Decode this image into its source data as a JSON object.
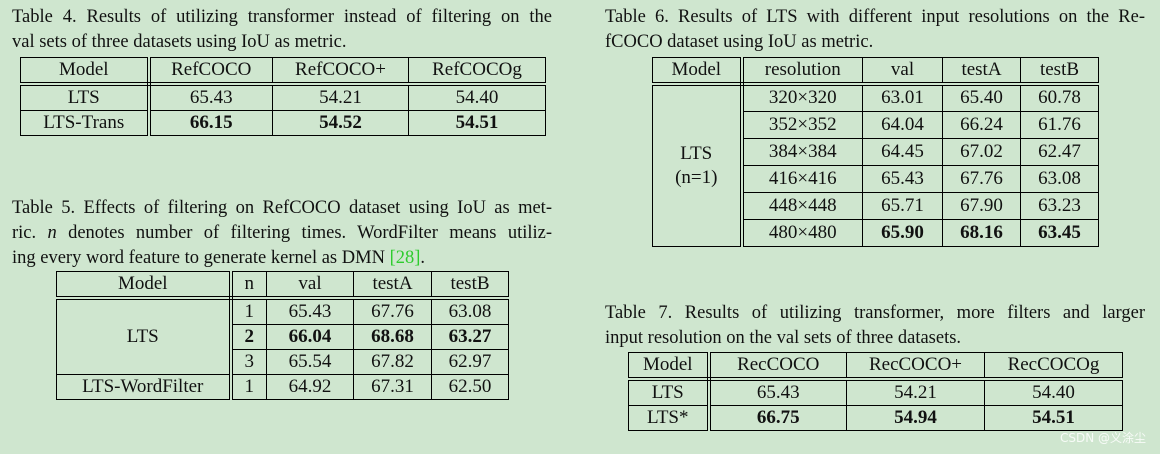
{
  "table4": {
    "caption": [
      "Table 4. Results of utilizing transformer instead of filtering on the",
      "val sets of three datasets using IoU as metric."
    ],
    "header": [
      "Model",
      "RefCOCO",
      "RefCOCO+",
      "RefCOCOg"
    ],
    "rows": [
      [
        "LTS",
        "65.43",
        "54.21",
        "54.40"
      ],
      [
        "LTS-Trans",
        "66.15",
        "54.52",
        "54.51"
      ]
    ]
  },
  "table5": {
    "caption": {
      "line1": "Table 5. Effects of filtering on RefCOCO dataset using IoU as met-",
      "line2": [
        "ric. ",
        "n",
        " denotes number of filtering times. WordFilter means utiliz-"
      ],
      "line3": [
        "ing every word feature to generate kernel as DMN ",
        "[28]",
        "."
      ]
    },
    "header": [
      "Model",
      "n",
      "val",
      "testA",
      "testB"
    ],
    "groups": [
      {
        "model": "LTS",
        "rows": [
          [
            "1",
            "65.43",
            "67.76",
            "63.08"
          ],
          [
            "2",
            "66.04",
            "68.68",
            "63.27"
          ],
          [
            "3",
            "65.54",
            "67.82",
            "62.97"
          ]
        ]
      },
      {
        "model": "LTS-WordFilter",
        "rows": [
          [
            "1",
            "64.92",
            "67.31",
            "62.50"
          ]
        ]
      }
    ]
  },
  "table6": {
    "caption": [
      "Table 6. Results of LTS with different input resolutions on the Re-",
      "fCOCO dataset using IoU as metric."
    ],
    "header": [
      "Model",
      "resolution",
      "val",
      "testA",
      "testB"
    ],
    "model": "LTS",
    "model_note": "(n=1)",
    "rows": [
      [
        "320×320",
        "63.01",
        "65.40",
        "60.78"
      ],
      [
        "352×352",
        "64.04",
        "66.24",
        "61.76"
      ],
      [
        "384×384",
        "64.45",
        "67.02",
        "62.47"
      ],
      [
        "416×416",
        "65.43",
        "67.76",
        "63.08"
      ],
      [
        "448×448",
        "65.71",
        "67.90",
        "63.23"
      ],
      [
        "480×480",
        "65.90",
        "68.16",
        "63.45"
      ]
    ]
  },
  "table7": {
    "caption": [
      "Table 7. Results of utilizing transformer, more filters and larger",
      "input resolution on the val sets of three datasets."
    ],
    "header": [
      "Model",
      "RecCOCO",
      "RecCOCO+",
      "RecCOCOg"
    ],
    "rows": [
      [
        "LTS",
        "65.43",
        "54.21",
        "54.40"
      ],
      [
        "LTS*",
        "66.75",
        "54.94",
        "54.51"
      ]
    ]
  },
  "watermark": "CSDN @义涂尘"
}
